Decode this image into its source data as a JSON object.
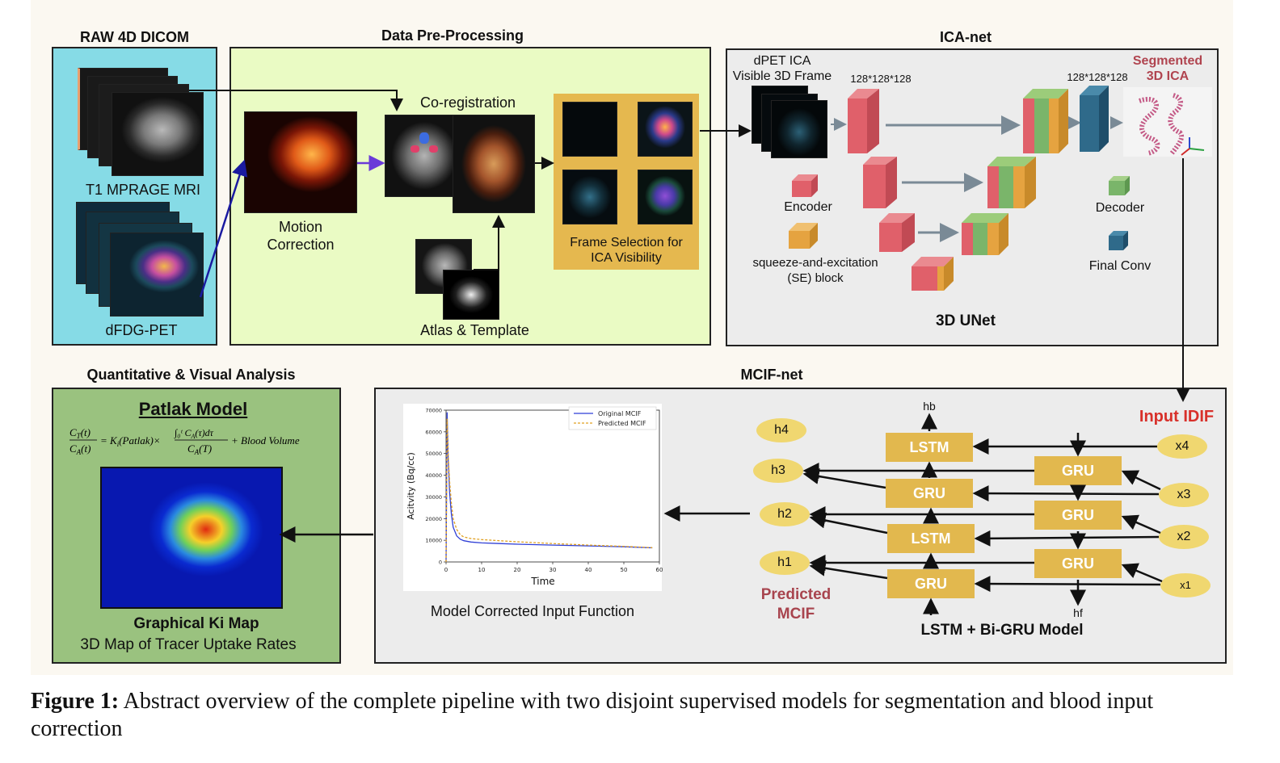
{
  "sections": {
    "raw": "RAW 4D DICOM",
    "pre": "Data Pre-Processing",
    "ica": "ICA-net",
    "quant": "Quantitative & Visual Analysis",
    "mcif": "MCIF-net"
  },
  "raw": {
    "t1": "T1 MPRAGE MRI",
    "pet": "dFDG-PET"
  },
  "pre": {
    "motion": "Motion\nCorrection",
    "coreg": "Co-registration",
    "atlas": "Atlas & Template",
    "frame_sel": "Frame Selection for\nICA Visibility"
  },
  "ica": {
    "input_label": "dPET ICA\nVisible 3D Frame",
    "dim_in": "128*128*128",
    "dim_out": "128*128*128",
    "segmented": "Segmented\n3D ICA",
    "encoder": "Encoder",
    "decoder": "Decoder",
    "se_block": "squeeze-and-excitation\n(SE) block",
    "final_conv": "Final Conv",
    "unet": "3D UNet"
  },
  "quant": {
    "patlak_title": "Patlak Model",
    "equation": "C_T(t)/C_A(t) = K_i(Patlak) × ∫₀ᵗ C_A(τ)dτ / C_A(T) + Blood Volume",
    "map_title": "Graphical Ki Map",
    "map_sub": "3D Map of Tracer Uptake Rates"
  },
  "mcif": {
    "input_idif": "Input IDIF",
    "predicted": "Predicted\nMCIF",
    "model_name": "LSTM + Bi-GRU Model",
    "plot_caption": "Model Corrected Input Function",
    "hb": "hb",
    "hf": "hf",
    "lstm_blocks": [
      "LSTM",
      "GRU",
      "LSTM",
      "GRU"
    ],
    "gru_blocks": [
      "GRU",
      "GRU",
      "GRU"
    ],
    "outputs": [
      "h4",
      "h3",
      "h2",
      "h1"
    ],
    "inputs": [
      "x4",
      "x3",
      "x2",
      "x1"
    ]
  },
  "chart_data": {
    "type": "line",
    "title": "",
    "xlabel": "Time",
    "ylabel": "Acitvity (Bq/cc)",
    "xlim": [
      0,
      60
    ],
    "ylim": [
      0,
      70000
    ],
    "xticks": [
      "0",
      "10",
      "20",
      "30",
      "40",
      "50",
      "60"
    ],
    "yticks": [
      "0",
      "10000",
      "20000",
      "30000",
      "40000",
      "50000",
      "60000",
      "70000"
    ],
    "legend_position": "top-right",
    "series": [
      {
        "name": "Original MCIF",
        "color": "#2f3fd6",
        "style": "solid",
        "x": [
          0,
          0.3,
          0.6,
          1,
          1.5,
          2,
          3,
          4,
          5,
          7,
          10,
          15,
          20,
          30,
          40,
          50,
          58
        ],
        "y": [
          0,
          69000,
          48000,
          32000,
          22000,
          16000,
          12000,
          10500,
          9800,
          9200,
          8800,
          8500,
          8200,
          7800,
          7400,
          7000,
          6500
        ]
      },
      {
        "name": "Predicted MCIF",
        "color": "#e0a020",
        "style": "dashed",
        "x": [
          0,
          0.3,
          0.6,
          1,
          1.5,
          2,
          3,
          4,
          5,
          7,
          10,
          15,
          20,
          30,
          40,
          50,
          58
        ],
        "y": [
          0,
          66000,
          50000,
          37000,
          27000,
          20000,
          15000,
          12500,
          11500,
          10800,
          10300,
          9800,
          9300,
          8500,
          7800,
          7200,
          6600
        ]
      }
    ]
  },
  "caption": {
    "label": "Figure 1:",
    "text": " Abstract overview of the complete pipeline with two disjoint supervised models for segmentation and blood input correction"
  }
}
